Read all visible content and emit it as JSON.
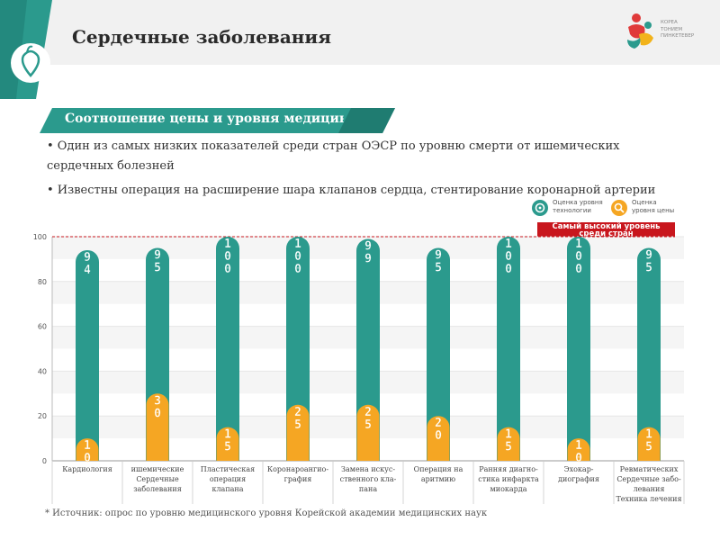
{
  "header": {
    "title": "Сердечные заболевания"
  },
  "logo": {
    "lines": [
      "КОРЕА",
      "ТОНИЕМ",
      "ПИНКЕТЕВЕР"
    ]
  },
  "banner": {
    "text": "Соотношение цены и уровня медицины"
  },
  "bullets": [
    "• Один из самых низких показателей среди стран ОЭСР по уровню смерти от ишемических сердечных болезней",
    "• Известны операция на расширение шара клапанов сердца, стентирование коронарной артерии"
  ],
  "legend": {
    "tech": "Оценка уровня технологии",
    "price": "Оценка уровня цены",
    "tech_line1": "Оценка уровня",
    "tech_line2": "технологии",
    "price_line1": "Оценка",
    "price_line2": "уровня цены"
  },
  "highest_label": {
    "line1": "Самый высокий уровень",
    "line2": "среди стран"
  },
  "colors": {
    "teal": "#2b9a8d",
    "orange": "#f5a623",
    "red": "#c8161d",
    "grid": "#e6e6e6"
  },
  "chart_data": {
    "type": "bar",
    "ylim": [
      0,
      100
    ],
    "yticks": [
      0,
      20,
      40,
      60,
      80,
      100
    ],
    "reference_line": 100,
    "categories": [
      "Кардиология",
      "ишемические Сердечные заболевания",
      "Пластическая операция клапана",
      "Коронароангио-графия",
      "Замена искус-ственного кла-пана",
      "Операция на аритмию",
      "Ранняя диагно-стика инфаркта миокарда",
      "Эхокар-диография",
      "Ревматических Сердечные забо-левания Техника лечения"
    ],
    "category_lines": [
      [
        "Кардиология"
      ],
      [
        "ишемические",
        "Сердечные",
        "заболевания"
      ],
      [
        "Пластическая",
        "операция",
        "клапана"
      ],
      [
        "Коронароангио-",
        "графия"
      ],
      [
        "Замена искус-",
        "ственного кла-",
        "пана"
      ],
      [
        "Операция на",
        "аритмию"
      ],
      [
        "Ранняя диагно-",
        "стика инфаркта",
        "миокарда"
      ],
      [
        "Эхокар-",
        "диография"
      ],
      [
        "Ревматических",
        "Сердечные забо-",
        "левания",
        "Техника лечения"
      ]
    ],
    "series": [
      {
        "name": "Оценка уровня технологии",
        "values": [
          94,
          95,
          100,
          100,
          99,
          95,
          100,
          100,
          95
        ],
        "labels": [
          "94",
          "95",
          "100",
          "100",
          "99",
          "95",
          "100",
          "100",
          "95"
        ]
      },
      {
        "name": "Оценка уровня цены",
        "values": [
          10,
          30,
          15,
          25,
          25,
          20,
          15,
          10,
          15
        ],
        "labels": [
          "10",
          "30",
          "15",
          "25",
          "25",
          "20",
          "15",
          "10",
          "15"
        ]
      }
    ]
  },
  "source": "* Источник: опрос по уровню медицинского уровня Корейской академии медицинских наук"
}
